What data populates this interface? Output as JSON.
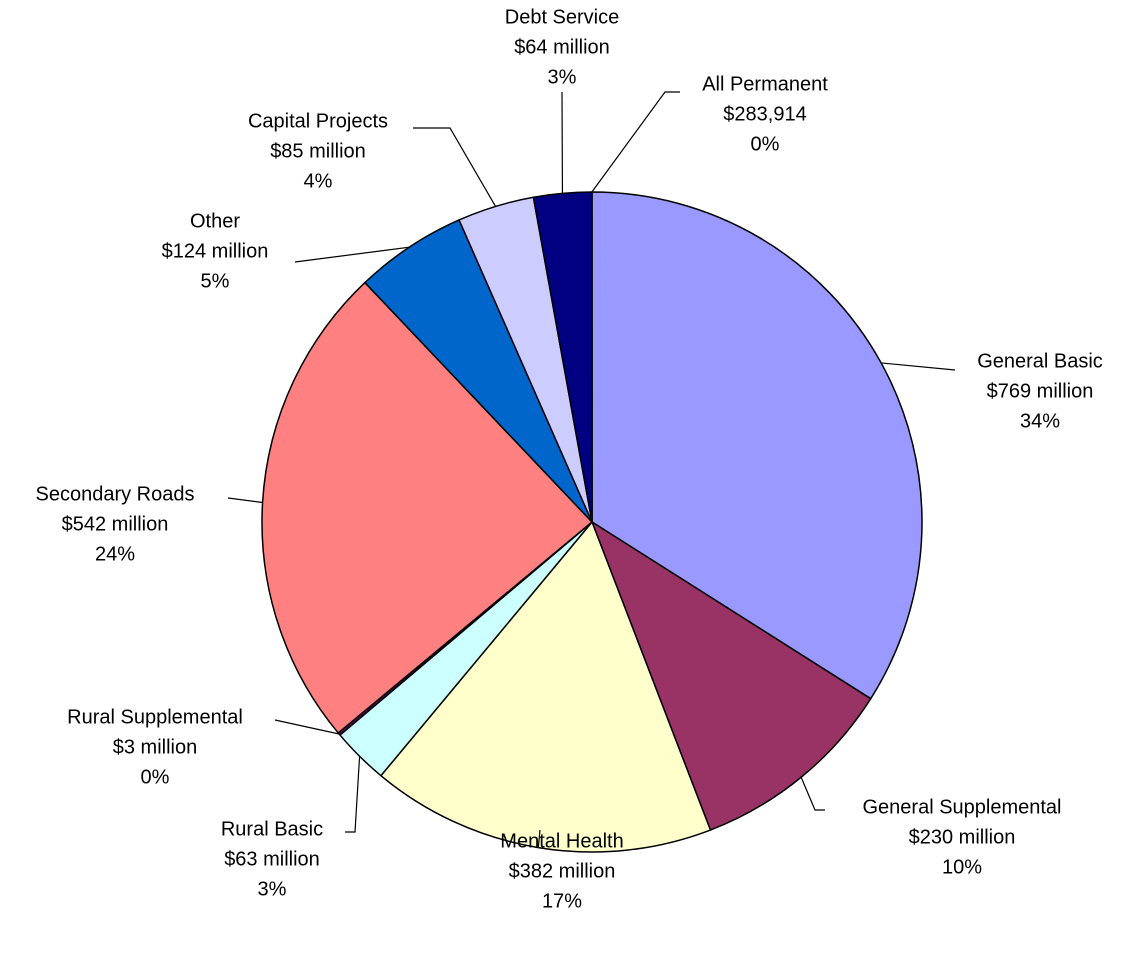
{
  "chart_data": {
    "type": "pie",
    "categories": [
      "General Basic",
      "General Supplemental",
      "Mental Health",
      "Rural Basic",
      "Rural Supplemental",
      "Secondary Roads",
      "Other",
      "Capital Projects",
      "Debt Service",
      "All Permanent"
    ],
    "values": [
      769000000,
      230000000,
      382000000,
      63000000,
      3000000,
      542000000,
      124000000,
      85000000,
      64000000,
      283914
    ],
    "value_labels": [
      "$769 million",
      "$230 million",
      "$382 million",
      "$63 million",
      "$3 million",
      "$542 million",
      "$124 million",
      "$85 million",
      "$64 million",
      "$283,914"
    ],
    "percents": [
      34,
      10,
      17,
      3,
      0,
      24,
      5,
      4,
      3,
      0
    ],
    "percent_labels": [
      "34%",
      "10%",
      "17%",
      "3%",
      "0%",
      "24%",
      "5%",
      "4%",
      "3%",
      "0%"
    ],
    "colors": [
      "#9999ff",
      "#993366",
      "#ffffcc",
      "#ccffff",
      "#660066",
      "#ff8080",
      "#0066cc",
      "#ccccff",
      "#000080",
      "#333399"
    ]
  }
}
